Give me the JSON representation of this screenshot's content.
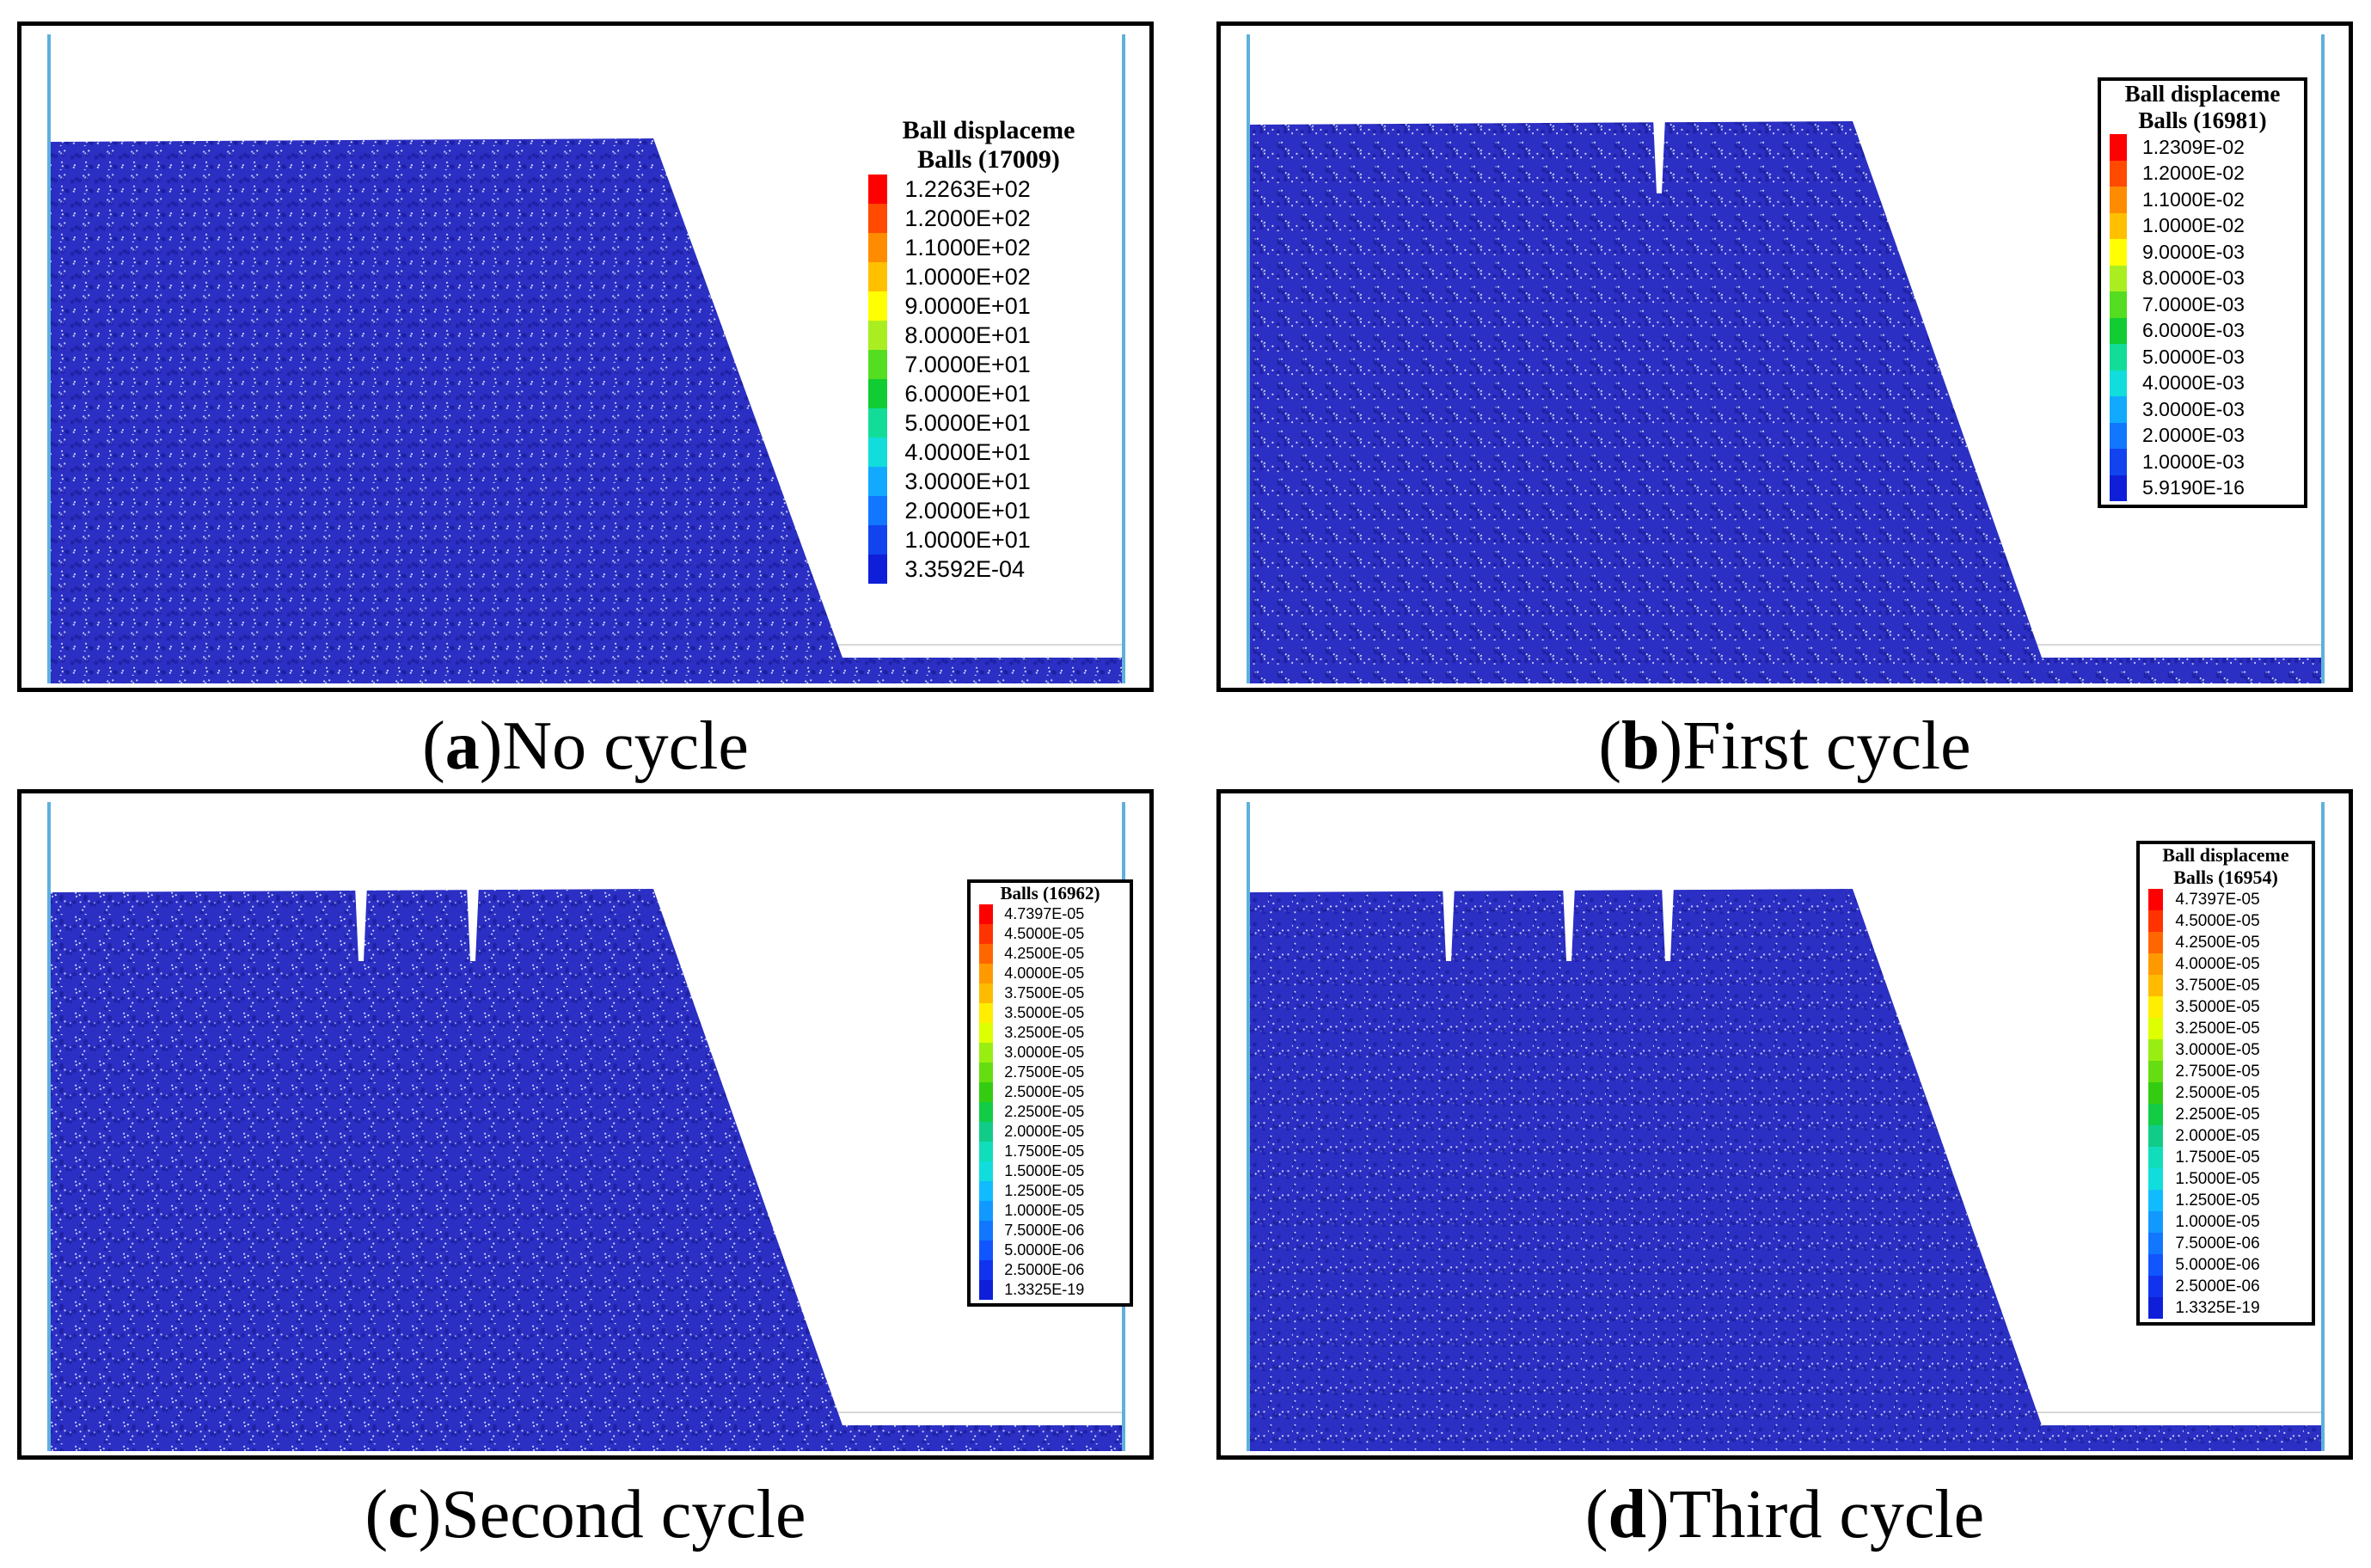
{
  "colors": {
    "particle_fill": "#2b2fc4",
    "particle_dark": "#1a1c9c",
    "wall": "#5fb0dc",
    "baseline": "#d8d8d8"
  },
  "panels": [
    {
      "id": "a",
      "caption_letter": "a",
      "caption_text": "No cycle",
      "cracks": 0,
      "legend": {
        "boxed": false,
        "title": "Ball displaceme",
        "subtitle": "Balls (17009)",
        "entries": [
          {
            "label": "1.2263E+02",
            "color": "#ff0000"
          },
          {
            "label": "1.2000E+02",
            "color": "#ff4a00"
          },
          {
            "label": "1.1000E+02",
            "color": "#ff8c00"
          },
          {
            "label": "1.0000E+02",
            "color": "#ffc000"
          },
          {
            "label": "9.0000E+01",
            "color": "#ffff00"
          },
          {
            "label": "8.0000E+01",
            "color": "#aaee22"
          },
          {
            "label": "7.0000E+01",
            "color": "#55dd22"
          },
          {
            "label": "6.0000E+01",
            "color": "#11cc33"
          },
          {
            "label": "5.0000E+01",
            "color": "#11dd99"
          },
          {
            "label": "4.0000E+01",
            "color": "#11dddd"
          },
          {
            "label": "3.0000E+01",
            "color": "#11aaff"
          },
          {
            "label": "2.0000E+01",
            "color": "#1177ff"
          },
          {
            "label": "1.0000E+01",
            "color": "#1144ee"
          },
          {
            "label": "3.3592E-04",
            "color": "#0f1fd9"
          }
        ]
      }
    },
    {
      "id": "b",
      "caption_letter": "b",
      "caption_text": "First cycle",
      "cracks": 1,
      "legend": {
        "boxed": true,
        "title": "Ball displaceme",
        "subtitle": "Balls (16981)",
        "entries": [
          {
            "label": "1.2309E-02",
            "color": "#ff0000"
          },
          {
            "label": "1.2000E-02",
            "color": "#ff4a00"
          },
          {
            "label": "1.1000E-02",
            "color": "#ff8c00"
          },
          {
            "label": "1.0000E-02",
            "color": "#ffc000"
          },
          {
            "label": "9.0000E-03",
            "color": "#ffff00"
          },
          {
            "label": "8.0000E-03",
            "color": "#aaee22"
          },
          {
            "label": "7.0000E-03",
            "color": "#55dd22"
          },
          {
            "label": "6.0000E-03",
            "color": "#11cc33"
          },
          {
            "label": "5.0000E-03",
            "color": "#11dd99"
          },
          {
            "label": "4.0000E-03",
            "color": "#11dddd"
          },
          {
            "label": "3.0000E-03",
            "color": "#11aaff"
          },
          {
            "label": "2.0000E-03",
            "color": "#1177ff"
          },
          {
            "label": "1.0000E-03",
            "color": "#1144ee"
          },
          {
            "label": "5.9190E-16",
            "color": "#0f1fd9"
          }
        ]
      }
    },
    {
      "id": "c",
      "caption_letter": "c",
      "caption_text": "Second cycle",
      "cracks": 2,
      "legend": {
        "boxed": true,
        "title": "",
        "subtitle": "Balls (16962)",
        "entries": [
          {
            "label": "4.7397E-05",
            "color": "#ff0000"
          },
          {
            "label": "4.5000E-05",
            "color": "#ff3300"
          },
          {
            "label": "4.2500E-05",
            "color": "#ff6600"
          },
          {
            "label": "4.0000E-05",
            "color": "#ff9900"
          },
          {
            "label": "3.7500E-05",
            "color": "#ffbb00"
          },
          {
            "label": "3.5000E-05",
            "color": "#ffee00"
          },
          {
            "label": "3.2500E-05",
            "color": "#ddff00"
          },
          {
            "label": "3.0000E-05",
            "color": "#99ee11"
          },
          {
            "label": "2.7500E-05",
            "color": "#66dd11"
          },
          {
            "label": "2.5000E-05",
            "color": "#33cc11"
          },
          {
            "label": "2.2500E-05",
            "color": "#11cc44"
          },
          {
            "label": "2.0000E-05",
            "color": "#11cc88"
          },
          {
            "label": "1.7500E-05",
            "color": "#11ddbb"
          },
          {
            "label": "1.5000E-05",
            "color": "#11dddd"
          },
          {
            "label": "1.2500E-05",
            "color": "#11bbff"
          },
          {
            "label": "1.0000E-05",
            "color": "#1199ff"
          },
          {
            "label": "7.5000E-06",
            "color": "#1177ff"
          },
          {
            "label": "5.0000E-06",
            "color": "#1155ff"
          },
          {
            "label": "2.5000E-06",
            "color": "#1133ee"
          },
          {
            "label": "1.3325E-19",
            "color": "#0f1fd9"
          }
        ]
      }
    },
    {
      "id": "d",
      "caption_letter": "d",
      "caption_text": "Third cycle",
      "cracks": 3,
      "legend": {
        "boxed": true,
        "title": "Ball displaceme",
        "subtitle": "Balls (16954)",
        "entries": [
          {
            "label": "4.7397E-05",
            "color": "#ff0000"
          },
          {
            "label": "4.5000E-05",
            "color": "#ff3300"
          },
          {
            "label": "4.2500E-05",
            "color": "#ff6600"
          },
          {
            "label": "4.0000E-05",
            "color": "#ff9900"
          },
          {
            "label": "3.7500E-05",
            "color": "#ffbb00"
          },
          {
            "label": "3.5000E-05",
            "color": "#ffee00"
          },
          {
            "label": "3.2500E-05",
            "color": "#ddff00"
          },
          {
            "label": "3.0000E-05",
            "color": "#99ee11"
          },
          {
            "label": "2.7500E-05",
            "color": "#66dd11"
          },
          {
            "label": "2.5000E-05",
            "color": "#33cc11"
          },
          {
            "label": "2.2500E-05",
            "color": "#11cc44"
          },
          {
            "label": "2.0000E-05",
            "color": "#11cc88"
          },
          {
            "label": "1.7500E-05",
            "color": "#11ddbb"
          },
          {
            "label": "1.5000E-05",
            "color": "#11dddd"
          },
          {
            "label": "1.2500E-05",
            "color": "#11bbff"
          },
          {
            "label": "1.0000E-05",
            "color": "#1199ff"
          },
          {
            "label": "7.5000E-06",
            "color": "#1177ff"
          },
          {
            "label": "5.0000E-06",
            "color": "#1155ff"
          },
          {
            "label": "2.5000E-06",
            "color": "#1133ee"
          },
          {
            "label": "1.3325E-19",
            "color": "#0f1fd9"
          }
        ]
      }
    }
  ]
}
